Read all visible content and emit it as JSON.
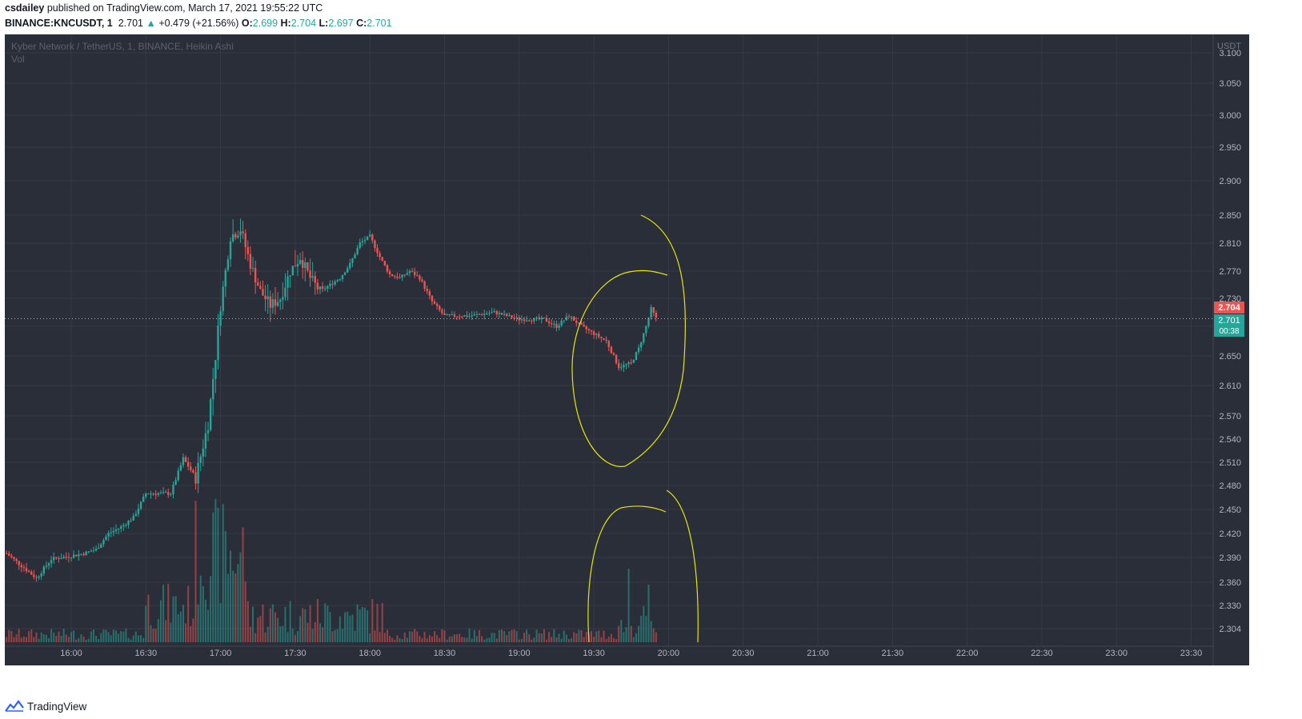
{
  "header": {
    "author": "csdailey",
    "published": "published on TradingView.com, March 17, 2021 19:55:22 UTC",
    "symbol": "BINANCE:KNCUSDT, 1",
    "last": "2.701",
    "change": "+0.479 (+21.56%)",
    "o_label": "O:",
    "o_value": "2.699",
    "h_label": "H:",
    "h_value": "2.704",
    "l_label": "L:",
    "l_value": "2.697",
    "c_label": "C:",
    "c_value": "2.701"
  },
  "legend": {
    "series_title": "Kyber Network / TetherUS, 1, BINANCE, Heikin Ashi",
    "volume_label": "Vol"
  },
  "price_axis": {
    "currency": "USDT",
    "high_badge": "2.704",
    "last_badge": "2.701",
    "countdown": "00:38"
  },
  "footer": {
    "brand": "TradingView"
  },
  "colors": {
    "background": "#2a2e39",
    "grid": "#363a45",
    "up": "#26a69a",
    "down": "#ef5350",
    "annotation": "#e8e600",
    "axis_text": "#b2b5be"
  },
  "chart_data": {
    "type": "candlestick",
    "title": "Kyber Network / TetherUS, 1, BINANCE, Heikin Ashi",
    "y_axis_ticks": [
      2.304,
      2.33,
      2.36,
      2.39,
      2.42,
      2.45,
      2.48,
      2.51,
      2.54,
      2.57,
      2.61,
      2.65,
      2.69,
      2.73,
      2.77,
      2.81,
      2.85,
      2.9,
      2.95,
      3.0,
      3.05,
      3.1
    ],
    "x_axis_ticks": [
      "16:00",
      "16:30",
      "17:00",
      "17:30",
      "18:00",
      "18:30",
      "19:00",
      "19:30",
      "20:00",
      "20:30",
      "21:00",
      "21:30",
      "22:00",
      "22:30",
      "23:00",
      "23:30"
    ],
    "price_path": [
      [
        "15:34",
        2.395
      ],
      [
        "15:40",
        2.38
      ],
      [
        "15:46",
        2.365
      ],
      [
        "15:52",
        2.388
      ],
      [
        "16:00",
        2.392
      ],
      [
        "16:05",
        2.395
      ],
      [
        "16:10",
        2.4
      ],
      [
        "16:15",
        2.42
      ],
      [
        "16:20",
        2.428
      ],
      [
        "16:25",
        2.44
      ],
      [
        "16:30",
        2.47
      ],
      [
        "16:35",
        2.47
      ],
      [
        "16:40",
        2.47
      ],
      [
        "16:45",
        2.515
      ],
      [
        "16:50",
        2.49
      ],
      [
        "16:55",
        2.56
      ],
      [
        "16:58",
        2.65
      ],
      [
        "17:00",
        2.72
      ],
      [
        "17:04",
        2.82
      ],
      [
        "17:08",
        2.83
      ],
      [
        "17:12",
        2.78
      ],
      [
        "17:16",
        2.74
      ],
      [
        "17:20",
        2.72
      ],
      [
        "17:24",
        2.73
      ],
      [
        "17:28",
        2.77
      ],
      [
        "17:32",
        2.79
      ],
      [
        "17:36",
        2.76
      ],
      [
        "17:40",
        2.74
      ],
      [
        "17:44",
        2.75
      ],
      [
        "17:48",
        2.76
      ],
      [
        "17:52",
        2.78
      ],
      [
        "17:56",
        2.81
      ],
      [
        "18:00",
        2.82
      ],
      [
        "18:04",
        2.79
      ],
      [
        "18:08",
        2.765
      ],
      [
        "18:12",
        2.76
      ],
      [
        "18:16",
        2.77
      ],
      [
        "18:20",
        2.76
      ],
      [
        "18:25",
        2.725
      ],
      [
        "18:30",
        2.705
      ],
      [
        "18:40",
        2.705
      ],
      [
        "18:50",
        2.71
      ],
      [
        "19:00",
        2.7
      ],
      [
        "19:10",
        2.7
      ],
      [
        "19:15",
        2.69
      ],
      [
        "19:20",
        2.705
      ],
      [
        "19:25",
        2.69
      ],
      [
        "19:30",
        2.68
      ],
      [
        "19:35",
        2.67
      ],
      [
        "19:40",
        2.635
      ],
      [
        "19:45",
        2.64
      ],
      [
        "19:48",
        2.66
      ],
      [
        "19:51",
        2.69
      ],
      [
        "19:53",
        2.715
      ],
      [
        "19:55",
        2.701
      ]
    ],
    "last_price": 2.701,
    "volume": "bars per 1-minute candle, green on up candles and red on down candles"
  }
}
